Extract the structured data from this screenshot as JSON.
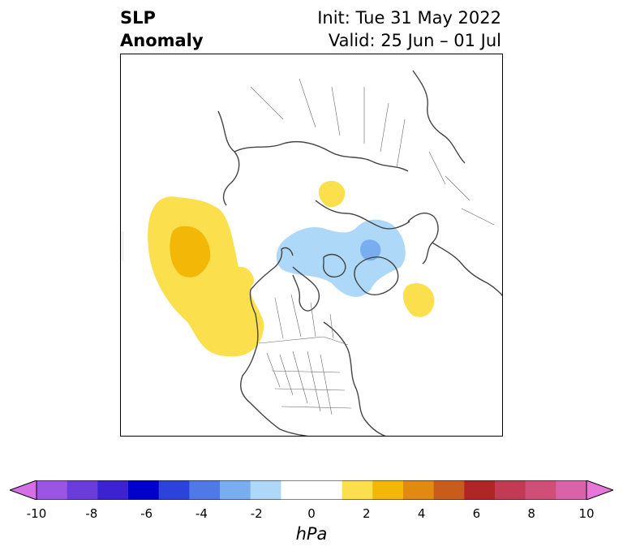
{
  "title": {
    "left_line1": "SLP",
    "left_line2": "Anomaly",
    "init": "Init: Tue 31 May 2022",
    "valid": "Valid: 25 Jun – 01 Jul"
  },
  "map": {
    "projection": "north-polar-stereographic",
    "region": "North America / Arctic / Eurasia",
    "anomalies": [
      {
        "name": "north-pacific-high",
        "sign": "positive",
        "max_level_hpa": 2
      },
      {
        "name": "arctic-low",
        "sign": "negative",
        "min_level_hpa": -2
      },
      {
        "name": "siberia-high",
        "sign": "positive",
        "max_level_hpa": 1
      },
      {
        "name": "north-atlantic-high",
        "sign": "positive",
        "max_level_hpa": 1
      }
    ]
  },
  "colorbar": {
    "unit": "hPa",
    "ticks": [
      "-10",
      "-8",
      "-6",
      "-4",
      "-2",
      "0",
      "2",
      "4",
      "6",
      "8",
      "10"
    ],
    "colors": [
      "#9a55e3",
      "#6a3ddb",
      "#3c22d0",
      "#0000cd",
      "#2b43db",
      "#4f79e6",
      "#78aef0",
      "#aed8f8",
      "#ffffff",
      "#ffffff",
      "#fcdf4d",
      "#f2b707",
      "#e08a12",
      "#c85c1c",
      "#b02525",
      "#c13b55",
      "#cf4f78",
      "#d963a8"
    ],
    "extend_low_color": "#d46fe6",
    "extend_high_color": "#e677d9"
  }
}
